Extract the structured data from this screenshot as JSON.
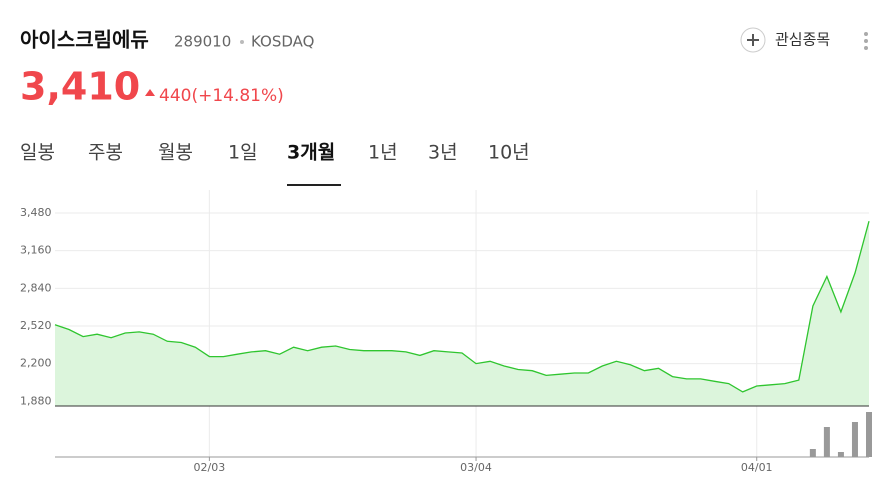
{
  "header": {
    "name": "아이스크림에듀",
    "code": "289010",
    "market": "KOSDAQ",
    "watch_button": "관심종목"
  },
  "quote": {
    "price": "3,410",
    "change": "440(+14.81%)"
  },
  "tabs": {
    "items": [
      "일봉",
      "주봉",
      "월봉",
      "1일",
      "3개월",
      "1년",
      "3년",
      "10년"
    ],
    "active": 4
  },
  "chart_data": {
    "type": "line",
    "categories": [
      null,
      null,
      null,
      null,
      null,
      null,
      null,
      null,
      null,
      null,
      null,
      "02/03",
      null,
      null,
      null,
      null,
      null,
      null,
      null,
      null,
      null,
      null,
      null,
      null,
      null,
      null,
      null,
      null,
      null,
      null,
      "03/04",
      null,
      null,
      null,
      null,
      null,
      null,
      null,
      null,
      null,
      null,
      null,
      null,
      null,
      null,
      null,
      null,
      null,
      null,
      null,
      "04/01",
      null,
      null,
      null,
      null,
      null,
      null,
      null,
      null
    ],
    "values": [
      2530,
      2490,
      2430,
      2450,
      2420,
      2460,
      2470,
      2450,
      2390,
      2380,
      2340,
      2260,
      2260,
      2280,
      2300,
      2310,
      2280,
      2340,
      2310,
      2340,
      2350,
      2320,
      2310,
      2310,
      2310,
      2300,
      2270,
      2310,
      2300,
      2290,
      2200,
      2220,
      2180,
      2150,
      2140,
      2100,
      2110,
      2120,
      2120,
      2180,
      2220,
      2190,
      2140,
      2160,
      2090,
      2070,
      2070,
      2050,
      2030,
      1960,
      2010,
      2020,
      2030,
      2060,
      2690,
      2940,
      2640,
      2970,
      3410
    ],
    "color": "#2fc52f",
    "fill": "#dcf5dc",
    "ylim": [
      1840,
      3480
    ],
    "yticks": [
      {
        "value": 1880,
        "label": "1,880"
      },
      {
        "value": 2200,
        "label": "2,200"
      },
      {
        "value": 2520,
        "label": "2,520"
      },
      {
        "value": 2840,
        "label": "2,840"
      },
      {
        "value": 3160,
        "label": "3,160"
      },
      {
        "value": 3480,
        "label": "3,480"
      }
    ],
    "grid": true,
    "volume": {
      "color": "#999999",
      "values": [
        0,
        0,
        0,
        0,
        0,
        0,
        0,
        0,
        0,
        0,
        0,
        0,
        0,
        0,
        0,
        0,
        0,
        0,
        0,
        0,
        0,
        0,
        0,
        0,
        0,
        0,
        0,
        0,
        0,
        0,
        0,
        0,
        0,
        0,
        0,
        0,
        0,
        0,
        0,
        0,
        0,
        0,
        0,
        0,
        0,
        0,
        0,
        0,
        0,
        0,
        0,
        0,
        0,
        0,
        8,
        30,
        5,
        35,
        45
      ]
    }
  }
}
